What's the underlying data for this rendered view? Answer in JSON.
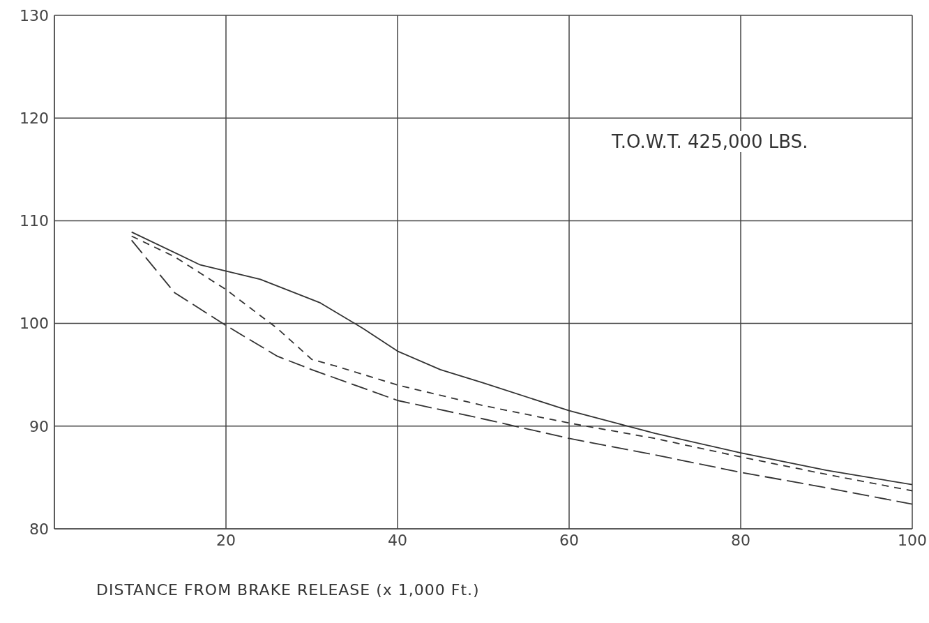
{
  "chart_data": {
    "type": "line",
    "xlabel": "DISTANCE FROM BRAKE RELEASE (x 1,000 Ft.)",
    "annotations": [
      "T.O.W.T. 425,000 LBS."
    ],
    "xlim": [
      0,
      100
    ],
    "xticks": [
      20,
      40,
      60,
      80,
      100
    ],
    "ylim": [
      80,
      130
    ],
    "yticks": [
      80,
      90,
      100,
      110,
      120,
      130
    ],
    "grid": true,
    "marker": "none",
    "series": [
      {
        "color": "#333333",
        "line_style": "solid",
        "x": [
          9,
          17,
          24,
          31,
          36,
          40,
          45,
          50,
          60,
          70,
          80,
          90,
          100
        ],
        "values": [
          108.9,
          105.7,
          104.3,
          102,
          99.5,
          97.3,
          95.5,
          94.2,
          91.5,
          89.3,
          87.4,
          85.7,
          84.3
        ]
      },
      {
        "color": "#333333",
        "line_style": "dashed",
        "x": [
          9,
          14,
          20,
          26,
          30,
          33,
          40,
          50,
          60,
          70,
          80,
          90,
          100
        ],
        "values": [
          108.5,
          106.5,
          103.3,
          99.5,
          96.5,
          95.8,
          94,
          92,
          90.3,
          88.8,
          87,
          85.3,
          83.7
        ]
      },
      {
        "color": "#333333",
        "line_style": "dashed",
        "x": [
          9,
          14,
          20,
          26,
          30,
          40,
          50,
          60,
          70,
          80,
          90,
          100
        ],
        "values": [
          108.1,
          103,
          99.8,
          96.8,
          95.5,
          92.5,
          90.7,
          88.8,
          87.2,
          85.5,
          84,
          82.4
        ]
      }
    ]
  }
}
